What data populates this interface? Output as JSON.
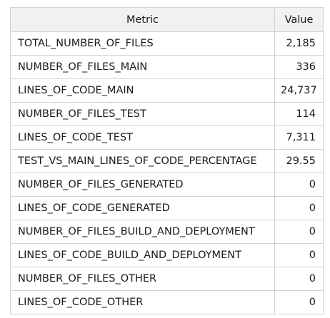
{
  "table": {
    "headers": {
      "metric": "Metric",
      "value": "Value"
    },
    "rows": [
      {
        "metric": "TOTAL_NUMBER_OF_FILES",
        "value": "2,185"
      },
      {
        "metric": "NUMBER_OF_FILES_MAIN",
        "value": "336"
      },
      {
        "metric": "LINES_OF_CODE_MAIN",
        "value": "24,737"
      },
      {
        "metric": "NUMBER_OF_FILES_TEST",
        "value": "114"
      },
      {
        "metric": "LINES_OF_CODE_TEST",
        "value": "7,311"
      },
      {
        "metric": "TEST_VS_MAIN_LINES_OF_CODE_PERCENTAGE",
        "value": "29.55"
      },
      {
        "metric": "NUMBER_OF_FILES_GENERATED",
        "value": "0"
      },
      {
        "metric": "LINES_OF_CODE_GENERATED",
        "value": "0"
      },
      {
        "metric": "NUMBER_OF_FILES_BUILD_AND_DEPLOYMENT",
        "value": "0"
      },
      {
        "metric": "LINES_OF_CODE_BUILD_AND_DEPLOYMENT",
        "value": "0"
      },
      {
        "metric": "NUMBER_OF_FILES_OTHER",
        "value": "0"
      },
      {
        "metric": "LINES_OF_CODE_OTHER",
        "value": "0"
      }
    ]
  }
}
